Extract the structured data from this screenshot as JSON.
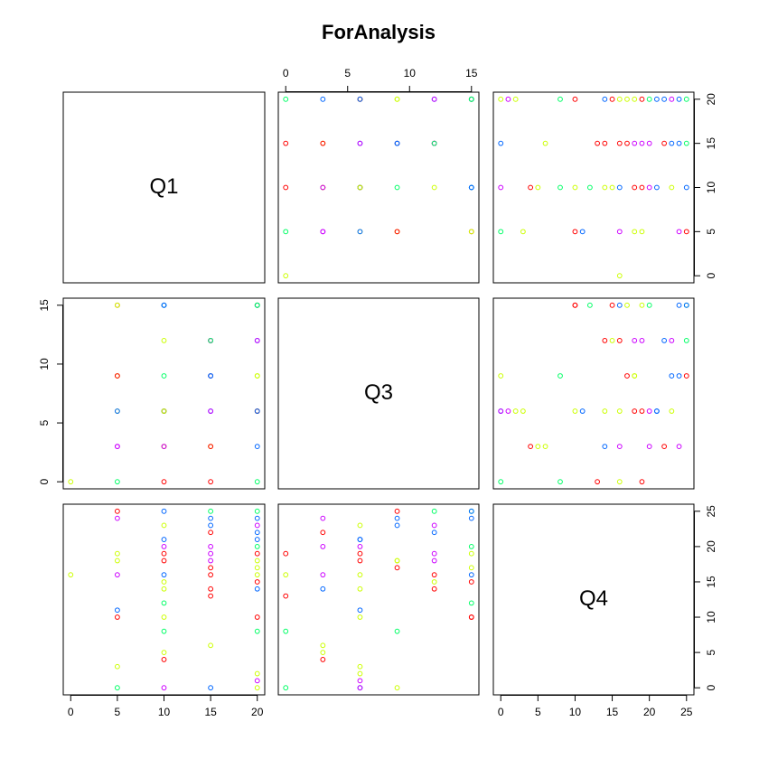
{
  "chart_data": {
    "type": "scatter-matrix",
    "title": "ForAnalysis",
    "variables": [
      {
        "name": "Q1",
        "lim": [
          -0.8,
          20.8
        ],
        "ticks": [
          0,
          5,
          10,
          15,
          20
        ],
        "values": [
          20,
          20,
          20,
          20,
          20,
          20,
          20,
          20,
          20,
          20,
          20,
          20,
          20,
          20,
          20,
          20,
          20,
          15,
          15,
          15,
          15,
          15,
          15,
          15,
          15,
          15,
          15,
          15,
          15,
          15,
          10,
          10,
          10,
          10,
          10,
          10,
          10,
          10,
          10,
          10,
          10,
          10,
          10,
          10,
          10,
          5,
          5,
          5,
          5,
          5,
          5,
          5,
          5,
          5,
          0
        ]
      },
      {
        "name": "Q3",
        "lim": [
          -0.6,
          15.6
        ],
        "ticks": [
          0,
          5,
          10,
          15
        ],
        "values": [
          9,
          6,
          6,
          0,
          15,
          3,
          15,
          6,
          15,
          9,
          6,
          15,
          6,
          12,
          12,
          15,
          15,
          6,
          3,
          0,
          12,
          12,
          9,
          12,
          12,
          6,
          3,
          9,
          9,
          12,
          6,
          3,
          3,
          9,
          6,
          15,
          6,
          12,
          15,
          6,
          0,
          3,
          6,
          6,
          15,
          0,
          6,
          15,
          6,
          3,
          9,
          15,
          3,
          9,
          0
        ]
      },
      {
        "name": "Q4",
        "lim": [
          -1,
          26
        ],
        "ticks": [
          0,
          5,
          10,
          15,
          20,
          25
        ],
        "values": [
          0,
          1,
          2,
          8,
          10,
          14,
          15,
          16,
          17,
          18,
          19,
          20,
          21,
          22,
          23,
          24,
          25,
          0,
          6,
          13,
          14,
          16,
          17,
          18,
          19,
          20,
          22,
          23,
          24,
          25,
          0,
          4,
          5,
          8,
          10,
          12,
          14,
          15,
          16,
          18,
          19,
          20,
          21,
          23,
          25,
          0,
          3,
          10,
          11,
          16,
          18,
          19,
          24,
          25,
          16
        ]
      }
    ],
    "colors": [
      "#CCFF00",
      "#CC00FF",
      "#CCFF00",
      "#00FF66",
      "#FF0000",
      "#0066FF",
      "#FF0000",
      "#CCFF00",
      "#CCFF00",
      "#CCFF00",
      "#FF0000",
      "#00FF66",
      "#0066FF",
      "#0066FF",
      "#CC00FF",
      "#0066FF",
      "#00FF66",
      "#0066FF",
      "#CCFF00",
      "#FF0000",
      "#FF0000",
      "#FF0000",
      "#FF0000",
      "#CC00FF",
      "#CC00FF",
      "#CC00FF",
      "#FF0000",
      "#0066FF",
      "#0066FF",
      "#00FF66",
      "#CC00FF",
      "#FF0000",
      "#CCFF00",
      "#00FF66",
      "#CCFF00",
      "#00FF66",
      "#CCFF00",
      "#CCFF00",
      "#0066FF",
      "#FF0000",
      "#FF0000",
      "#CC00FF",
      "#0066FF",
      "#CCFF00",
      "#0066FF",
      "#00FF66",
      "#CCFF00",
      "#FF0000",
      "#0066FF",
      "#CC00FF",
      "#CCFF00",
      "#CCFF00",
      "#CC00FF",
      "#FF0000",
      "#CCFF00"
    ]
  }
}
